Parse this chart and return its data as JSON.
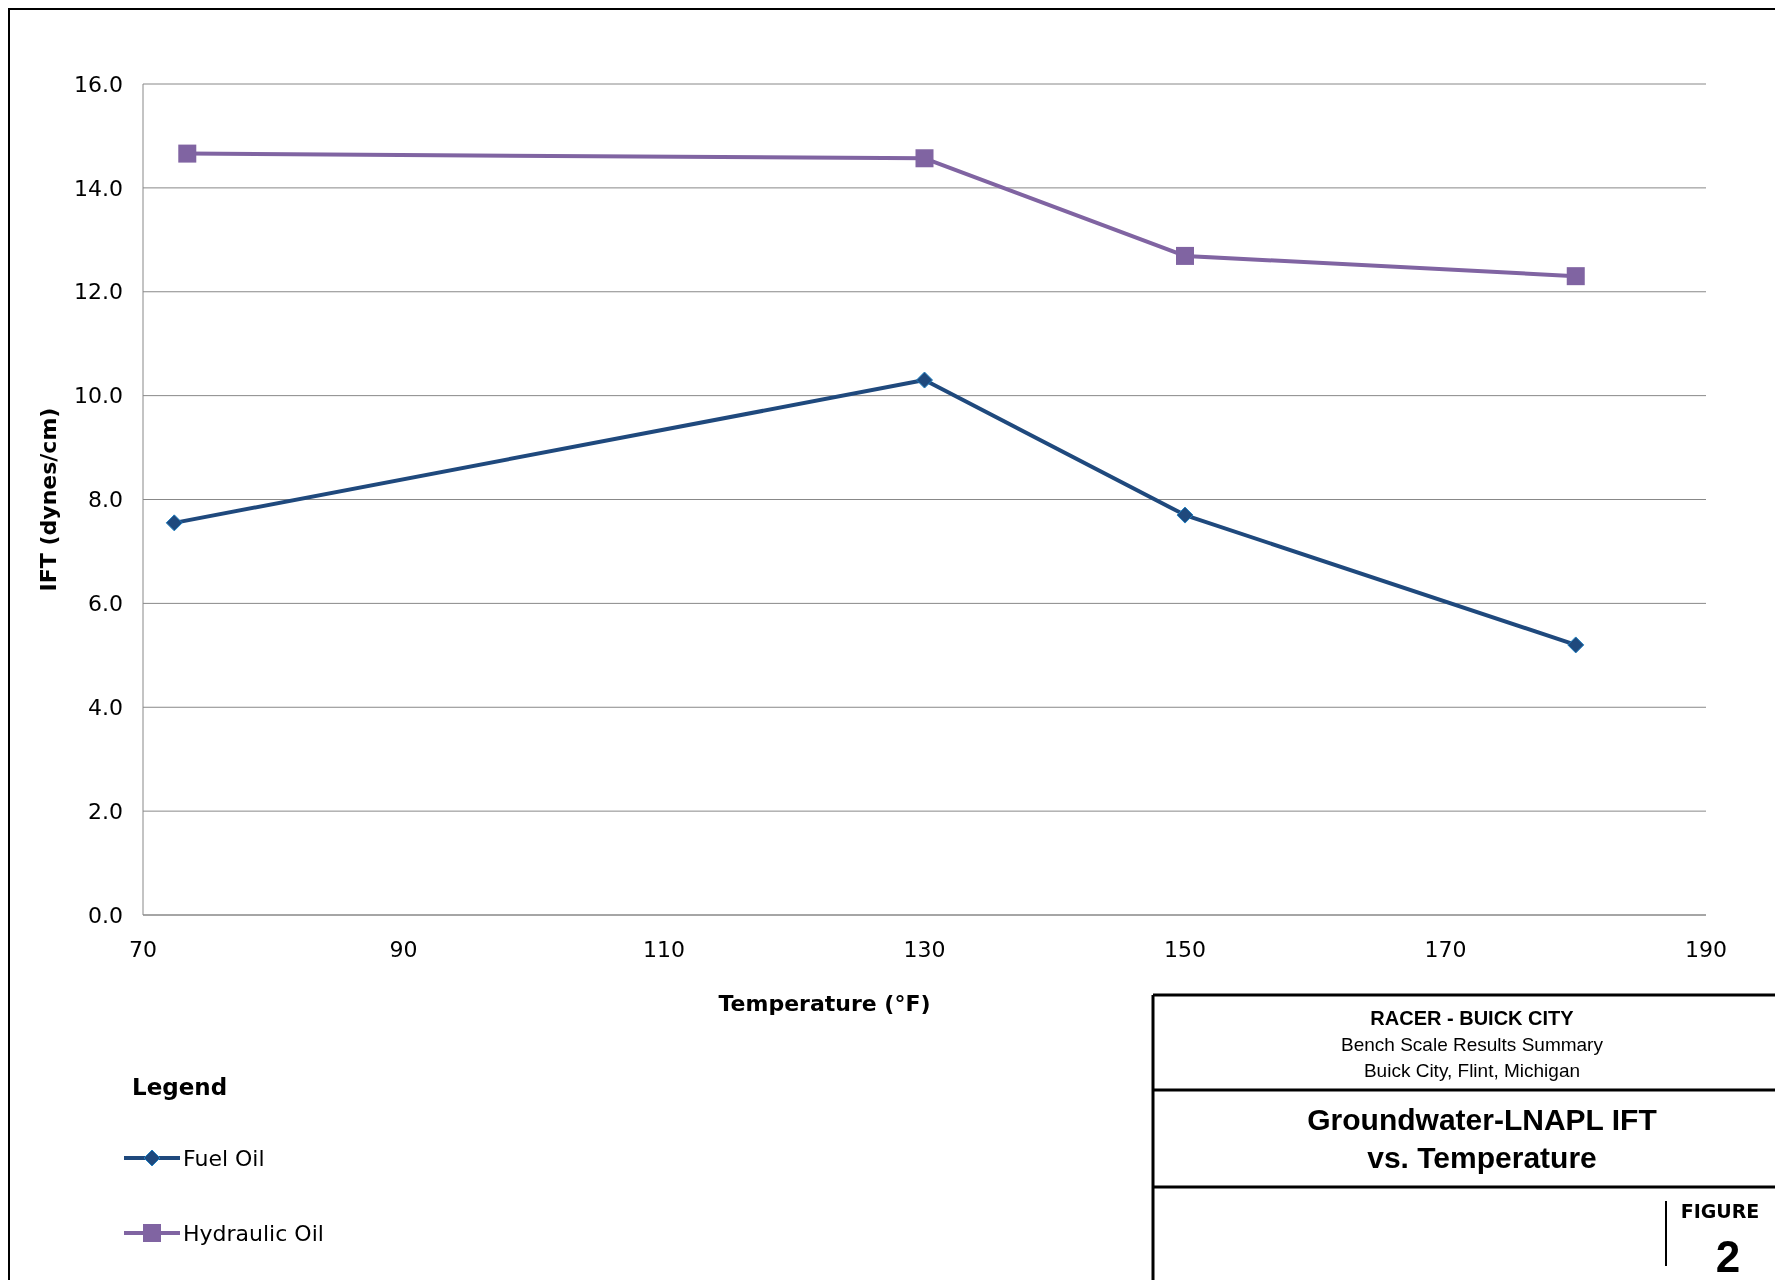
{
  "chart_data": {
    "type": "line",
    "title": "Groundwater-LNAPL IFT vs. Temperature",
    "xlabel": "Temperature (°F)",
    "ylabel": "IFT (dynes/cm)",
    "legend_title": "Legend",
    "legend": "bottom left",
    "grid": "y",
    "xlim": [
      70,
      190
    ],
    "xticks": [
      70,
      90,
      110,
      130,
      150,
      170,
      190
    ],
    "ylim": [
      0,
      16
    ],
    "yticks": [
      {
        "value": 0,
        "label": "0.0"
      },
      {
        "value": 2,
        "label": "2.0"
      },
      {
        "value": 4,
        "label": "4.0"
      },
      {
        "value": 6,
        "label": "6.0"
      },
      {
        "value": 8,
        "label": "8.0"
      },
      {
        "value": 10,
        "label": "10.0"
      },
      {
        "value": 12,
        "label": "12.0"
      },
      {
        "value": 14,
        "label": "14.0"
      },
      {
        "value": 16,
        "label": "16.0"
      }
    ],
    "series": [
      {
        "name": "Fuel Oil",
        "color": "#1f497d",
        "marker": "diamond",
        "x": [
          72.4,
          130,
          150,
          180
        ],
        "values": [
          7.55,
          10.3,
          7.7,
          5.2
        ]
      },
      {
        "name": "Hydraulic Oil",
        "color": "#8064a2",
        "marker": "square",
        "x": [
          73.4,
          130,
          150,
          180
        ],
        "values": [
          14.66,
          14.57,
          12.69,
          12.3
        ]
      }
    ],
    "annotations": [
      "RACER - BUICK CITY",
      "Bench Scale Results Summary",
      "Buick City, Flint, Michigan",
      "FIGURE",
      "2"
    ]
  }
}
